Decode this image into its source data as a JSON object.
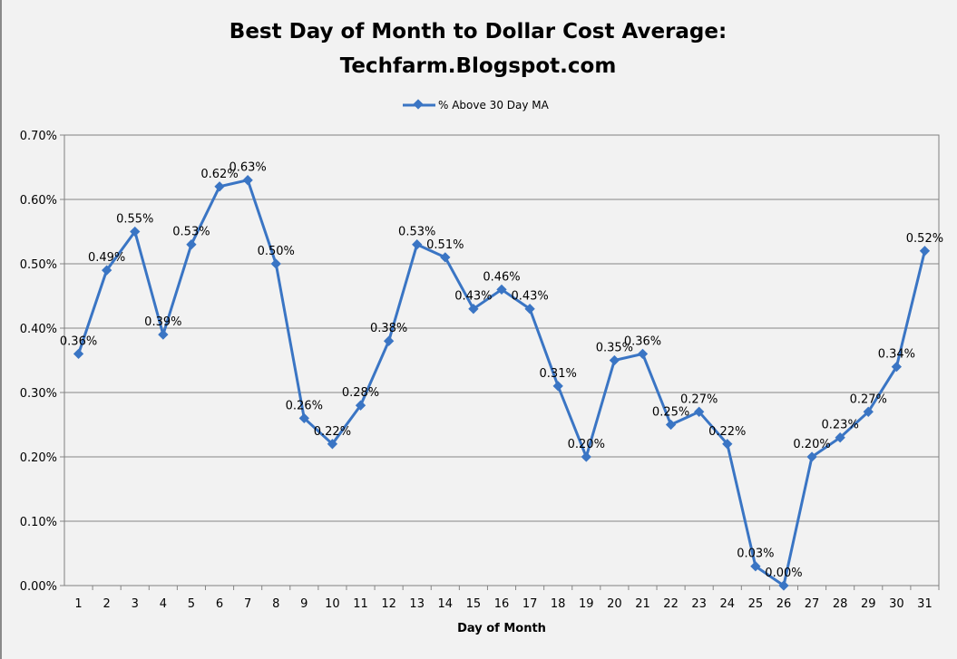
{
  "chart_data": {
    "type": "line",
    "title_line1": "Best Day of Month to Dollar Cost Average:",
    "title_line2": "Techfarm.Blogspot.com",
    "xlabel": "Day of Month",
    "ylabel": "",
    "ylim": [
      0,
      0.7
    ],
    "yticks": [
      "0.00%",
      "0.10%",
      "0.20%",
      "0.30%",
      "0.40%",
      "0.50%",
      "0.60%",
      "0.70%"
    ],
    "grid": true,
    "legend_position": "top-center",
    "series": [
      {
        "name": "% Above 30 Day MA",
        "color": "#3a75c4",
        "x": [
          1,
          2,
          3,
          4,
          5,
          6,
          7,
          8,
          9,
          10,
          11,
          12,
          13,
          14,
          15,
          16,
          17,
          18,
          19,
          20,
          21,
          22,
          23,
          24,
          25,
          26,
          27,
          28,
          29,
          30,
          31
        ],
        "values": [
          0.36,
          0.49,
          0.55,
          0.39,
          0.53,
          0.62,
          0.63,
          0.5,
          0.26,
          0.22,
          0.28,
          0.38,
          0.53,
          0.51,
          0.43,
          0.46,
          0.43,
          0.31,
          0.2,
          0.35,
          0.36,
          0.25,
          0.27,
          0.22,
          0.03,
          0.0,
          0.2,
          0.23,
          0.27,
          0.34,
          0.52
        ],
        "labels": [
          "0.36%",
          "0.49%",
          "0.55%",
          "0.39%",
          "0.53%",
          "0.62%",
          "0.63%",
          "0.50%",
          "0.26%",
          "0.22%",
          "0.28%",
          "0.38%",
          "0.53%",
          "0.51%",
          "0.43%",
          "0.46%",
          "0.43%",
          "0.31%",
          "0.20%",
          "0.35%",
          "0.36%",
          "0.25%",
          "0.27%",
          "0.22%",
          "0.03%",
          "0.00%",
          "0.20%",
          "0.23%",
          "0.27%",
          "0.34%",
          "0.52%"
        ]
      }
    ]
  }
}
